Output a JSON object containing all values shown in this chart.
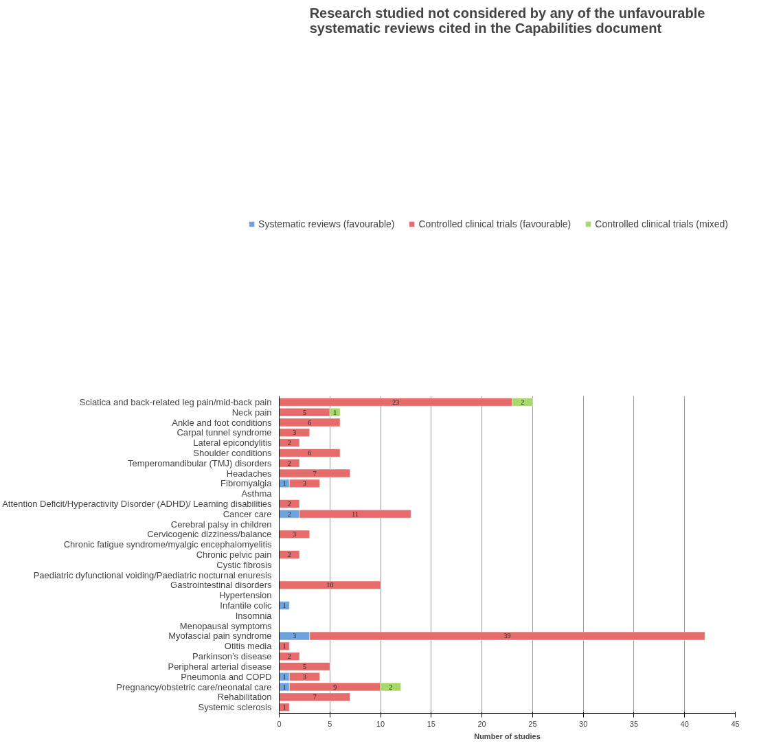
{
  "chart_data": {
    "type": "bar",
    "orientation": "horizontal",
    "stacked": true,
    "title": "Research studied not considered by any of the unfavourable systematic reviews cited in the Capabilities document",
    "xlabel": "Number of studies",
    "categories": [
      "Sciatica and back-related leg pain/mid-back pain",
      "Neck pain",
      "Ankle and foot conditions",
      "Carpal tunnel syndrome",
      "Lateral epicondylitis",
      "Shoulder conditions",
      "Temperomandibular (TMJ) disorders",
      "Headaches",
      "Fibromyalgia",
      "Asthma",
      "Attention Deficit/Hyperactivity Disorder (ADHD)/ Learning disabilities",
      "Cancer care",
      "Cerebral palsy in children",
      "Cervicogenic dizziness/balance",
      "Chronic fatigue syndrome/myalgic encephalomyelitis",
      "Chronic pelvic pain",
      "Cystic fibrosis",
      "Paediatric dyfunctional voiding/Paediatric nocturnal enuresis",
      "Gastrointestinal disorders",
      "Hypertension",
      "Infantile colic",
      "Insomnia",
      "Menopausal symptoms",
      "Myofascial pain syndrome",
      "Otitis media",
      "Parkinson’s disease",
      "Peripheral arterial disease",
      "Pneumonia and COPD",
      "Pregnancy/obstetric care/neonatal care",
      "Rehabilitation",
      "Systemic sclerosis"
    ],
    "series": [
      {
        "name": "Systematic reviews (favourable)",
        "color": "#6fa3dd",
        "values": [
          null,
          null,
          null,
          null,
          null,
          null,
          null,
          null,
          1,
          null,
          null,
          2,
          null,
          null,
          null,
          null,
          null,
          null,
          null,
          null,
          1,
          null,
          null,
          3,
          null,
          null,
          null,
          1,
          1,
          null,
          null
        ]
      },
      {
        "name": "Controlled clinical trials (favourable)",
        "color": "#e66c6c",
        "values": [
          23,
          5,
          6,
          3,
          2,
          6,
          2,
          7,
          3,
          null,
          2,
          11,
          null,
          3,
          null,
          2,
          null,
          null,
          10,
          null,
          null,
          null,
          null,
          39,
          1,
          2,
          5,
          3,
          9,
          7,
          1
        ]
      },
      {
        "name": "Controlled clinical trials (mixed)",
        "color": "#a6d86a",
        "values": [
          2,
          1,
          null,
          null,
          null,
          null,
          null,
          null,
          null,
          null,
          null,
          null,
          null,
          null,
          null,
          null,
          null,
          null,
          null,
          null,
          null,
          null,
          null,
          null,
          null,
          null,
          null,
          null,
          2,
          null,
          null
        ]
      }
    ],
    "xlim": [
      0,
      45
    ],
    "xticks": [
      0,
      5,
      10,
      15,
      20,
      25,
      30,
      35,
      40,
      45
    ],
    "grid": "x",
    "legend": "top",
    "data_labels": true
  }
}
